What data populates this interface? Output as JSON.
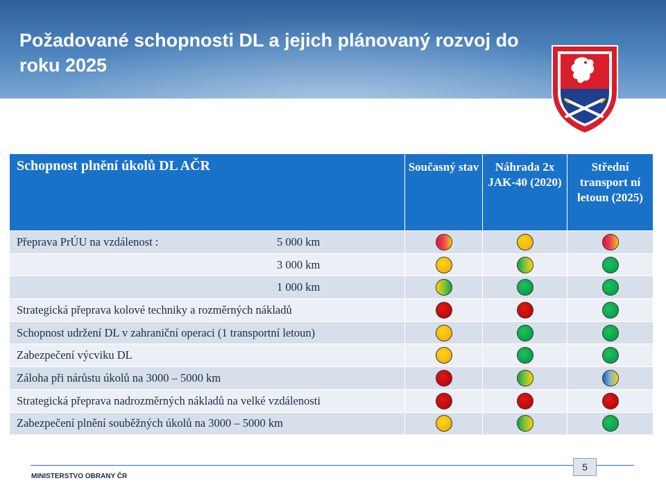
{
  "slide": {
    "title": "Požadované schopnosti DL a jejich plánovaný rozvoj do roku 2025",
    "page_number": "5",
    "footer": "MINISTERSTVO OBRANY ČR"
  },
  "table": {
    "header": {
      "main": "Schopnost plnění úkolů DL AČR",
      "col1": "Současný stav",
      "col2": "Náhrada 2x JAK-40 (2020)",
      "col3": "Střední transport ní letoun (2025)"
    },
    "rows": [
      {
        "label": "Přeprava PrÚU na vzdálenost :",
        "sub": "5 000 km",
        "c1": "red-yellow",
        "c2": "yellow",
        "c3": "red-yellow"
      },
      {
        "label": "",
        "sub": "3 000 km",
        "c1": "yellow",
        "c2": "yellow-green",
        "c3": "green"
      },
      {
        "label": "",
        "sub": "1 000 km",
        "c1": "green-yellow",
        "c2": "green",
        "c3": "green"
      },
      {
        "label": "Strategická přeprava kolové techniky a rozměrných nákladů",
        "sub": "",
        "c1": "red",
        "c2": "red",
        "c3": "green"
      },
      {
        "label": "Schopnost udržení DL v zahraniční operaci (1 transportní letoun)",
        "sub": "",
        "c1": "yellow",
        "c2": "green",
        "c3": "green"
      },
      {
        "label": "Zabezpečení výcviku DL",
        "sub": "",
        "c1": "yellow",
        "c2": "green",
        "c3": "green"
      },
      {
        "label": "Záloha při nárůstu úkolů na 3000 – 5000 km",
        "sub": "",
        "c1": "red",
        "c2": "yellow-green",
        "c3": "blue-yellow"
      },
      {
        "label": "Strategická přeprava nadrozměrných nákladů na velké vzdálenosti",
        "sub": "",
        "c1": "red",
        "c2": "red",
        "c3": "red"
      },
      {
        "label": "Zabezpečení plnění souběžných úkolů na 3000 – 5000 km",
        "sub": "",
        "c1": "yellow",
        "c2": "yellow-green",
        "c3": "green"
      }
    ]
  }
}
